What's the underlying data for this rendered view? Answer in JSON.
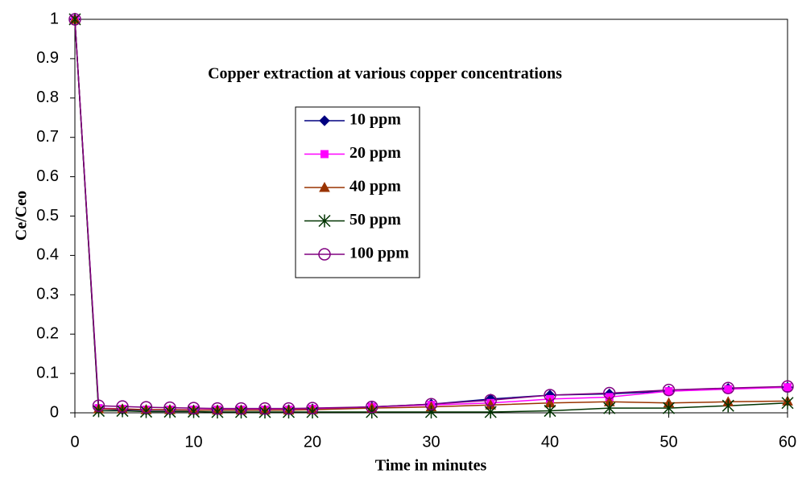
{
  "chart_data": {
    "type": "line",
    "title": "Copper extraction at various copper concentrations",
    "x_label": "Time in minutes",
    "y_label": "Ce/Ceo",
    "x": [
      0,
      2,
      4,
      6,
      8,
      10,
      12,
      14,
      16,
      18,
      20,
      25,
      30,
      35,
      40,
      45,
      50,
      55,
      60
    ],
    "series": [
      {
        "name": "10 ppm",
        "color": "#000080",
        "marker": "diamond",
        "values": [
          1,
          0.01,
          0.008,
          0.007,
          0.007,
          0.007,
          0.007,
          0.007,
          0.007,
          0.008,
          0.01,
          0.015,
          0.022,
          0.035,
          0.045,
          0.048,
          0.055,
          0.062,
          0.065
        ]
      },
      {
        "name": "20 ppm",
        "color": "#ff00ff",
        "marker": "square",
        "values": [
          1,
          0.012,
          0.01,
          0.008,
          0.008,
          0.008,
          0.008,
          0.008,
          0.008,
          0.008,
          0.01,
          0.015,
          0.02,
          0.025,
          0.035,
          0.04,
          0.055,
          0.06,
          0.065
        ]
      },
      {
        "name": "40 ppm",
        "color": "#993300",
        "marker": "triangle",
        "values": [
          1,
          0.01,
          0.01,
          0.008,
          0.008,
          0.007,
          0.007,
          0.007,
          0.007,
          0.007,
          0.008,
          0.012,
          0.015,
          0.02,
          0.025,
          0.028,
          0.025,
          0.028,
          0.03
        ]
      },
      {
        "name": "50 ppm",
        "color": "#003300",
        "marker": "star",
        "values": [
          1,
          0.005,
          0.005,
          0.003,
          0.003,
          0.003,
          0.002,
          0.002,
          0.002,
          0.002,
          0.002,
          0.002,
          0.002,
          0.002,
          0.005,
          0.012,
          0.012,
          0.018,
          0.025
        ]
      },
      {
        "name": "100 ppm",
        "color": "#800080",
        "marker": "circle",
        "values": [
          1,
          0.018,
          0.016,
          0.014,
          0.013,
          0.012,
          0.011,
          0.011,
          0.011,
          0.011,
          0.012,
          0.015,
          0.022,
          0.032,
          0.045,
          0.05,
          0.058,
          0.063,
          0.067
        ]
      }
    ],
    "xlim": [
      0,
      60
    ],
    "xticks": [
      0,
      10,
      20,
      30,
      40,
      50,
      60
    ],
    "ylim": [
      0,
      1
    ],
    "yticks": [
      0,
      0.1,
      0.2,
      0.3,
      0.4,
      0.5,
      0.6,
      0.7,
      0.8,
      0.9,
      1
    ],
    "grid": false
  }
}
